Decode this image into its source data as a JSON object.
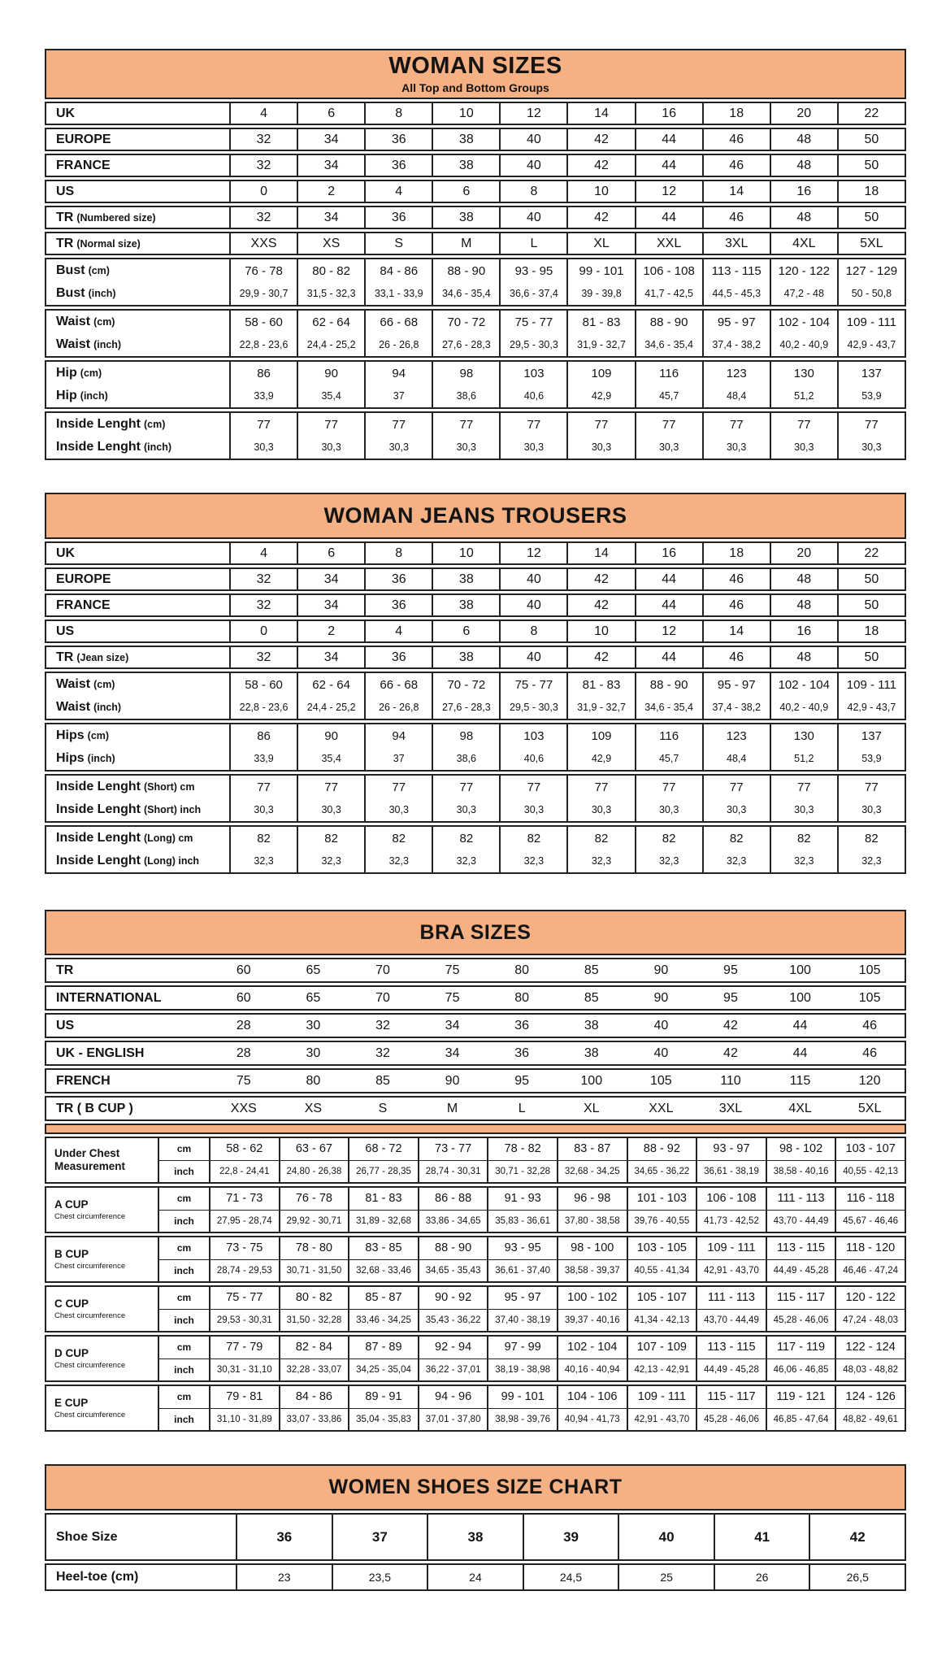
{
  "colors": {
    "accent": "#F5B183",
    "border": "#222222",
    "text": "#141414",
    "page_bg": "#FFFFFF"
  },
  "woman_sizes": {
    "title": "WOMAN SIZES",
    "subtitle": "All Top and Bottom Groups",
    "single_rows": [
      {
        "label": "UK",
        "suffix": "",
        "values": [
          "4",
          "6",
          "8",
          "10",
          "12",
          "14",
          "16",
          "18",
          "20",
          "22"
        ]
      },
      {
        "label": "EUROPE",
        "suffix": "",
        "values": [
          "32",
          "34",
          "36",
          "38",
          "40",
          "42",
          "44",
          "46",
          "48",
          "50"
        ]
      },
      {
        "label": "FRANCE",
        "suffix": "",
        "values": [
          "32",
          "34",
          "36",
          "38",
          "40",
          "42",
          "44",
          "46",
          "48",
          "50"
        ]
      },
      {
        "label": "US",
        "suffix": "",
        "values": [
          "0",
          "2",
          "4",
          "6",
          "8",
          "10",
          "12",
          "14",
          "16",
          "18"
        ]
      },
      {
        "label": "TR",
        "suffix": "(Numbered size)",
        "values": [
          "32",
          "34",
          "36",
          "38",
          "40",
          "42",
          "44",
          "46",
          "48",
          "50"
        ]
      },
      {
        "label": "TR",
        "suffix": "(Normal size)",
        "values": [
          "XXS",
          "XS",
          "S",
          "M",
          "L",
          "XL",
          "XXL",
          "3XL",
          "4XL",
          "5XL"
        ]
      }
    ],
    "pair_groups": [
      {
        "lines": [
          {
            "label": "Bust",
            "suffix": "(cm)",
            "values": [
              "76 - 78",
              "80 - 82",
              "84 - 86",
              "88 - 90",
              "93 - 95",
              "99 - 101",
              "106 - 108",
              "113 - 115",
              "120 - 122",
              "127 - 129"
            ]
          },
          {
            "label": "Bust",
            "suffix": "(inch)",
            "values": [
              "29,9 - 30,7",
              "31,5 - 32,3",
              "33,1 - 33,9",
              "34,6 - 35,4",
              "36,6 - 37,4",
              "39 - 39,8",
              "41,7 - 42,5",
              "44,5 - 45,3",
              "47,2 - 48",
              "50 - 50,8"
            ]
          }
        ]
      },
      {
        "lines": [
          {
            "label": "Waist",
            "suffix": "(cm)",
            "values": [
              "58 - 60",
              "62 - 64",
              "66 - 68",
              "70 - 72",
              "75 - 77",
              "81 - 83",
              "88 - 90",
              "95 - 97",
              "102 - 104",
              "109 - 111"
            ]
          },
          {
            "label": "Waist",
            "suffix": "(inch)",
            "values": [
              "22,8 - 23,6",
              "24,4 - 25,2",
              "26 - 26,8",
              "27,6 - 28,3",
              "29,5 - 30,3",
              "31,9 - 32,7",
              "34,6 - 35,4",
              "37,4 - 38,2",
              "40,2 - 40,9",
              "42,9 - 43,7"
            ]
          }
        ]
      },
      {
        "lines": [
          {
            "label": "Hip",
            "suffix": "(cm)",
            "values": [
              "86",
              "90",
              "94",
              "98",
              "103",
              "109",
              "116",
              "123",
              "130",
              "137"
            ]
          },
          {
            "label": "Hip",
            "suffix": "(inch)",
            "values": [
              "33,9",
              "35,4",
              "37",
              "38,6",
              "40,6",
              "42,9",
              "45,7",
              "48,4",
              "51,2",
              "53,9"
            ]
          }
        ]
      },
      {
        "lines": [
          {
            "label": "Inside Lenght",
            "suffix": "(cm)",
            "values": [
              "77",
              "77",
              "77",
              "77",
              "77",
              "77",
              "77",
              "77",
              "77",
              "77"
            ]
          },
          {
            "label": "Inside Lenght",
            "suffix": "(inch)",
            "values": [
              "30,3",
              "30,3",
              "30,3",
              "30,3",
              "30,3",
              "30,3",
              "30,3",
              "30,3",
              "30,3",
              "30,3"
            ]
          }
        ]
      }
    ]
  },
  "woman_jeans": {
    "title": "WOMAN JEANS TROUSERS",
    "single_rows": [
      {
        "label": "UK",
        "suffix": "",
        "values": [
          "4",
          "6",
          "8",
          "10",
          "12",
          "14",
          "16",
          "18",
          "20",
          "22"
        ]
      },
      {
        "label": "EUROPE",
        "suffix": "",
        "values": [
          "32",
          "34",
          "36",
          "38",
          "40",
          "42",
          "44",
          "46",
          "48",
          "50"
        ]
      },
      {
        "label": "FRANCE",
        "suffix": "",
        "values": [
          "32",
          "34",
          "36",
          "38",
          "40",
          "42",
          "44",
          "46",
          "48",
          "50"
        ]
      },
      {
        "label": "US",
        "suffix": "",
        "values": [
          "0",
          "2",
          "4",
          "6",
          "8",
          "10",
          "12",
          "14",
          "16",
          "18"
        ]
      },
      {
        "label": "TR",
        "suffix": "(Jean size)",
        "values": [
          "32",
          "34",
          "36",
          "38",
          "40",
          "42",
          "44",
          "46",
          "48",
          "50"
        ]
      }
    ],
    "pair_groups": [
      {
        "lines": [
          {
            "label": "Waist",
            "suffix": "(cm)",
            "values": [
              "58 - 60",
              "62 - 64",
              "66 - 68",
              "70 - 72",
              "75 - 77",
              "81 - 83",
              "88 - 90",
              "95 - 97",
              "102 - 104",
              "109 - 111"
            ]
          },
          {
            "label": "Waist",
            "suffix": "(inch)",
            "values": [
              "22,8 - 23,6",
              "24,4 - 25,2",
              "26 - 26,8",
              "27,6 - 28,3",
              "29,5 - 30,3",
              "31,9 - 32,7",
              "34,6 - 35,4",
              "37,4 - 38,2",
              "40,2 - 40,9",
              "42,9 - 43,7"
            ]
          }
        ]
      },
      {
        "lines": [
          {
            "label": "Hips",
            "suffix": "(cm)",
            "values": [
              "86",
              "90",
              "94",
              "98",
              "103",
              "109",
              "116",
              "123",
              "130",
              "137"
            ]
          },
          {
            "label": "Hips",
            "suffix": "(inch)",
            "values": [
              "33,9",
              "35,4",
              "37",
              "38,6",
              "40,6",
              "42,9",
              "45,7",
              "48,4",
              "51,2",
              "53,9"
            ]
          }
        ]
      },
      {
        "lines": [
          {
            "label": "Inside Lenght",
            "suffix": "(Short) cm",
            "values": [
              "77",
              "77",
              "77",
              "77",
              "77",
              "77",
              "77",
              "77",
              "77",
              "77"
            ]
          },
          {
            "label": "Inside Lenght",
            "suffix": "(Short) inch",
            "values": [
              "30,3",
              "30,3",
              "30,3",
              "30,3",
              "30,3",
              "30,3",
              "30,3",
              "30,3",
              "30,3",
              "30,3"
            ]
          }
        ]
      },
      {
        "lines": [
          {
            "label": "Inside Lenght",
            "suffix": "(Long) cm",
            "values": [
              "82",
              "82",
              "82",
              "82",
              "82",
              "82",
              "82",
              "82",
              "82",
              "82"
            ]
          },
          {
            "label": "Inside Lenght",
            "suffix": "(Long) inch",
            "values": [
              "32,3",
              "32,3",
              "32,3",
              "32,3",
              "32,3",
              "32,3",
              "32,3",
              "32,3",
              "32,3",
              "32,3"
            ]
          }
        ]
      }
    ]
  },
  "bra_sizes": {
    "title": "BRA SIZES",
    "open_rows": [
      {
        "label": "TR",
        "values": [
          "60",
          "65",
          "70",
          "75",
          "80",
          "85",
          "90",
          "95",
          "100",
          "105"
        ]
      },
      {
        "label": "INTERNATIONAL",
        "values": [
          "60",
          "65",
          "70",
          "75",
          "80",
          "85",
          "90",
          "95",
          "100",
          "105"
        ]
      },
      {
        "label": "US",
        "values": [
          "28",
          "30",
          "32",
          "34",
          "36",
          "38",
          "40",
          "42",
          "44",
          "46"
        ]
      },
      {
        "label": "UK - ENGLISH",
        "values": [
          "28",
          "30",
          "32",
          "34",
          "36",
          "38",
          "40",
          "42",
          "44",
          "46"
        ]
      },
      {
        "label": "FRENCH",
        "values": [
          "75",
          "80",
          "85",
          "90",
          "95",
          "100",
          "105",
          "110",
          "115",
          "120"
        ]
      },
      {
        "label": "TR ( B CUP )",
        "values": [
          "XXS",
          "XS",
          "S",
          "M",
          "L",
          "XL",
          "XXL",
          "3XL",
          "4XL",
          "5XL"
        ]
      }
    ],
    "cup_groups": [
      {
        "label": "Under Chest Measurement",
        "sub": "",
        "rows": [
          {
            "unit": "cm",
            "values": [
              "58 - 62",
              "63 - 67",
              "68 - 72",
              "73 - 77",
              "78 - 82",
              "83 - 87",
              "88 - 92",
              "93 - 97",
              "98 - 102",
              "103 - 107"
            ]
          },
          {
            "unit": "inch",
            "values": [
              "22,8 - 24,41",
              "24,80 - 26,38",
              "26,77 - 28,35",
              "28,74 - 30,31",
              "30,71 - 32,28",
              "32,68 - 34,25",
              "34,65 - 36,22",
              "36,61 - 38,19",
              "38,58 - 40,16",
              "40,55 - 42,13"
            ]
          }
        ]
      },
      {
        "label": "A CUP",
        "sub": "Chest circumference",
        "rows": [
          {
            "unit": "cm",
            "values": [
              "71 - 73",
              "76 - 78",
              "81 - 83",
              "86 - 88",
              "91 - 93",
              "96 - 98",
              "101 - 103",
              "106 - 108",
              "111 - 113",
              "116 - 118"
            ]
          },
          {
            "unit": "inch",
            "values": [
              "27,95 - 28,74",
              "29,92 - 30,71",
              "31,89 - 32,68",
              "33,86 - 34,65",
              "35,83 - 36,61",
              "37,80 - 38,58",
              "39,76 - 40,55",
              "41,73 - 42,52",
              "43,70 - 44,49",
              "45,67 - 46,46"
            ]
          }
        ]
      },
      {
        "label": "B CUP",
        "sub": "Chest circumference",
        "rows": [
          {
            "unit": "cm",
            "values": [
              "73 - 75",
              "78 - 80",
              "83 - 85",
              "88 - 90",
              "93 - 95",
              "98 - 100",
              "103 - 105",
              "109 - 111",
              "113 - 115",
              "118 - 120"
            ]
          },
          {
            "unit": "inch",
            "values": [
              "28,74 - 29,53",
              "30,71 - 31,50",
              "32,68 - 33,46",
              "34,65 - 35,43",
              "36,61 - 37,40",
              "38,58 - 39,37",
              "40,55 - 41,34",
              "42,91 - 43,70",
              "44,49 - 45,28",
              "46,46 - 47,24"
            ]
          }
        ]
      },
      {
        "label": "C CUP",
        "sub": "Chest circumference",
        "rows": [
          {
            "unit": "cm",
            "values": [
              "75 - 77",
              "80 - 82",
              "85 - 87",
              "90 - 92",
              "95 - 97",
              "100 - 102",
              "105 - 107",
              "111 - 113",
              "115 - 117",
              "120 - 122"
            ]
          },
          {
            "unit": "inch",
            "values": [
              "29,53 - 30,31",
              "31,50 - 32,28",
              "33,46 - 34,25",
              "35,43 - 36,22",
              "37,40 - 38,19",
              "39,37 - 40,16",
              "41,34 - 42,13",
              "43,70 - 44,49",
              "45,28 - 46,06",
              "47,24 - 48,03"
            ]
          }
        ]
      },
      {
        "label": "D CUP",
        "sub": "Chest circumference",
        "rows": [
          {
            "unit": "cm",
            "values": [
              "77 - 79",
              "82 - 84",
              "87 - 89",
              "92 - 94",
              "97 - 99",
              "102 - 104",
              "107 - 109",
              "113 - 115",
              "117 - 119",
              "122 - 124"
            ]
          },
          {
            "unit": "inch",
            "values": [
              "30,31 - 31,10",
              "32,28 - 33,07",
              "34,25 - 35,04",
              "36,22 - 37,01",
              "38,19 - 38,98",
              "40,16 - 40,94",
              "42,13 - 42,91",
              "44,49 - 45,28",
              "46,06 - 46,85",
              "48,03 - 48,82"
            ]
          }
        ]
      },
      {
        "label": "E CUP",
        "sub": "Chest circumference",
        "rows": [
          {
            "unit": "cm",
            "values": [
              "79 - 81",
              "84 - 86",
              "89 - 91",
              "94 - 96",
              "99 - 101",
              "104 - 106",
              "109 - 111",
              "115 - 117",
              "119 - 121",
              "124 - 126"
            ]
          },
          {
            "unit": "inch",
            "values": [
              "31,10 - 31,89",
              "33,07 - 33,86",
              "35,04 - 35,83",
              "37,01 - 37,80",
              "38,98 - 39,76",
              "40,94 - 41,73",
              "42,91 - 43,70",
              "45,28 - 46,06",
              "46,85 - 47,64",
              "48,82 - 49,61"
            ]
          }
        ]
      }
    ]
  },
  "shoes": {
    "title": "WOMEN SHOES SIZE CHART",
    "rows": [
      {
        "label": "Shoe Size",
        "bold": true,
        "values": [
          "36",
          "37",
          "38",
          "39",
          "40",
          "41",
          "42"
        ]
      },
      {
        "label": "Heel-toe (cm)",
        "bold": false,
        "values": [
          "23",
          "23,5",
          "24",
          "24,5",
          "25",
          "26",
          "26,5"
        ]
      }
    ]
  }
}
